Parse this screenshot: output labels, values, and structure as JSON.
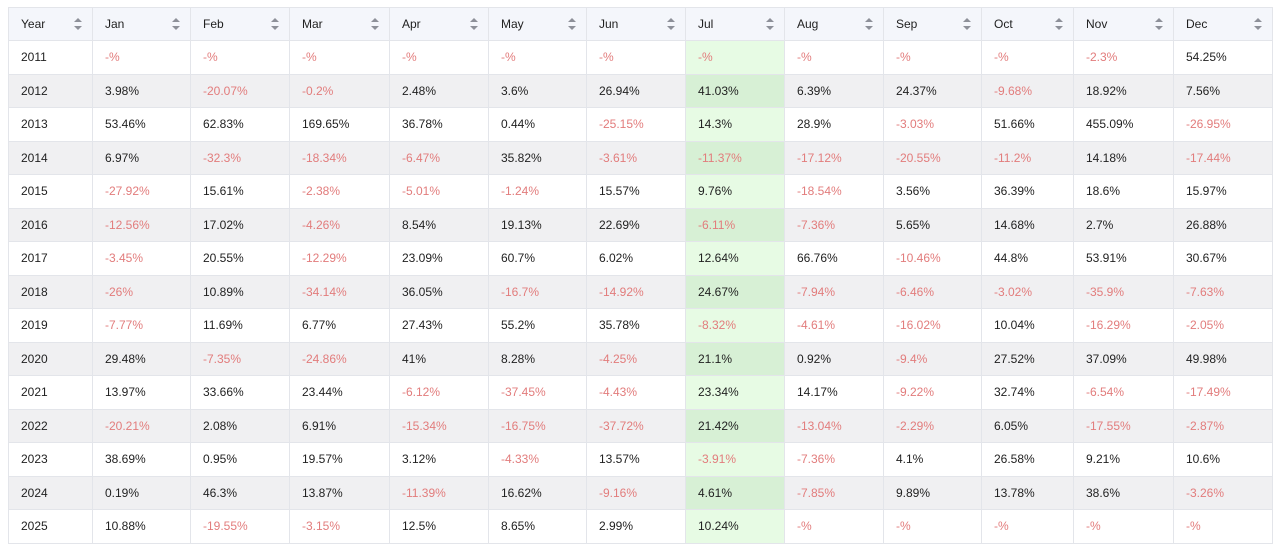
{
  "colors": {
    "negative": "#e27c7c",
    "positive": "#1f1f1f",
    "highlight_column": "#e7fbe4",
    "header_bg": "#f4f6fb"
  },
  "header": {
    "year": "Year",
    "months": [
      "Jan",
      "Feb",
      "Mar",
      "Apr",
      "May",
      "Jun",
      "Jul",
      "Aug",
      "Sep",
      "Oct",
      "Nov",
      "Dec"
    ],
    "sort_icon": "sort-updown-icon"
  },
  "rows": [
    {
      "year": "2011",
      "values": [
        "-%",
        "-%",
        "-%",
        "-%",
        "-%",
        "-%",
        "-%",
        "-%",
        "-%",
        "-%",
        "-2.3%",
        "54.25%"
      ]
    },
    {
      "year": "2012",
      "values": [
        "3.98%",
        "-20.07%",
        "-0.2%",
        "2.48%",
        "3.6%",
        "26.94%",
        "41.03%",
        "6.39%",
        "24.37%",
        "-9.68%",
        "18.92%",
        "7.56%"
      ]
    },
    {
      "year": "2013",
      "values": [
        "53.46%",
        "62.83%",
        "169.65%",
        "36.78%",
        "0.44%",
        "-25.15%",
        "14.3%",
        "28.9%",
        "-3.03%",
        "51.66%",
        "455.09%",
        "-26.95%"
      ]
    },
    {
      "year": "2014",
      "values": [
        "6.97%",
        "-32.3%",
        "-18.34%",
        "-6.47%",
        "35.82%",
        "-3.61%",
        "-11.37%",
        "-17.12%",
        "-20.55%",
        "-11.2%",
        "14.18%",
        "-17.44%"
      ]
    },
    {
      "year": "2015",
      "values": [
        "-27.92%",
        "15.61%",
        "-2.38%",
        "-5.01%",
        "-1.24%",
        "15.57%",
        "9.76%",
        "-18.54%",
        "3.56%",
        "36.39%",
        "18.6%",
        "15.97%"
      ]
    },
    {
      "year": "2016",
      "values": [
        "-12.56%",
        "17.02%",
        "-4.26%",
        "8.54%",
        "19.13%",
        "22.69%",
        "-6.11%",
        "-7.36%",
        "5.65%",
        "14.68%",
        "2.7%",
        "26.88%"
      ]
    },
    {
      "year": "2017",
      "values": [
        "-3.45%",
        "20.55%",
        "-12.29%",
        "23.09%",
        "60.7%",
        "6.02%",
        "12.64%",
        "66.76%",
        "-10.46%",
        "44.8%",
        "53.91%",
        "30.67%"
      ]
    },
    {
      "year": "2018",
      "values": [
        "-26%",
        "10.89%",
        "-34.14%",
        "36.05%",
        "-16.7%",
        "-14.92%",
        "24.67%",
        "-7.94%",
        "-6.46%",
        "-3.02%",
        "-35.9%",
        "-7.63%"
      ]
    },
    {
      "year": "2019",
      "values": [
        "-7.77%",
        "11.69%",
        "6.77%",
        "27.43%",
        "55.2%",
        "35.78%",
        "-8.32%",
        "-4.61%",
        "-16.02%",
        "10.04%",
        "-16.29%",
        "-2.05%"
      ]
    },
    {
      "year": "2020",
      "values": [
        "29.48%",
        "-7.35%",
        "-24.86%",
        "41%",
        "8.28%",
        "-4.25%",
        "21.1%",
        "0.92%",
        "-9.4%",
        "27.52%",
        "37.09%",
        "49.98%"
      ]
    },
    {
      "year": "2021",
      "values": [
        "13.97%",
        "33.66%",
        "23.44%",
        "-6.12%",
        "-37.45%",
        "-4.43%",
        "23.34%",
        "14.17%",
        "-9.22%",
        "32.74%",
        "-6.54%",
        "-17.49%"
      ]
    },
    {
      "year": "2022",
      "values": [
        "-20.21%",
        "2.08%",
        "6.91%",
        "-15.34%",
        "-16.75%",
        "-37.72%",
        "21.42%",
        "-13.04%",
        "-2.29%",
        "6.05%",
        "-17.55%",
        "-2.87%"
      ]
    },
    {
      "year": "2023",
      "values": [
        "38.69%",
        "0.95%",
        "19.57%",
        "3.12%",
        "-4.33%",
        "13.57%",
        "-3.91%",
        "-7.36%",
        "4.1%",
        "26.58%",
        "9.21%",
        "10.6%"
      ]
    },
    {
      "year": "2024",
      "values": [
        "0.19%",
        "46.3%",
        "13.87%",
        "-11.39%",
        "16.62%",
        "-9.16%",
        "4.61%",
        "-7.85%",
        "9.89%",
        "13.78%",
        "38.6%",
        "-3.26%"
      ]
    },
    {
      "year": "2025",
      "values": [
        "10.88%",
        "-19.55%",
        "-3.15%",
        "12.5%",
        "8.65%",
        "2.99%",
        "10.24%",
        "-%",
        "-%",
        "-%",
        "-%",
        "-%"
      ]
    }
  ]
}
